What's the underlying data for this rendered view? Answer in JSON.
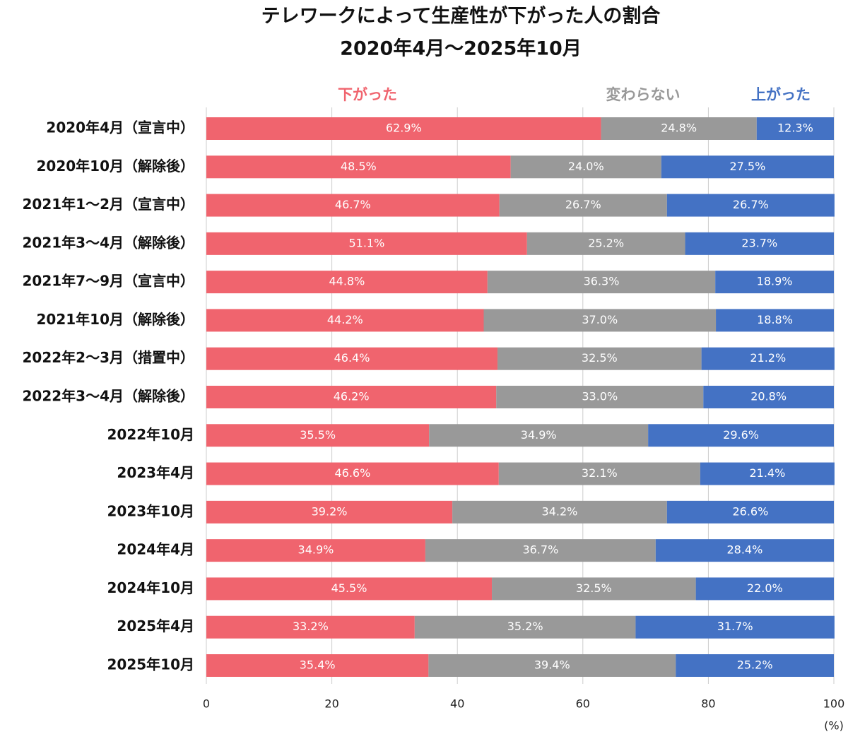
{
  "chart_data": {
    "type": "stacked-barh",
    "title": "テレワークによって生産性が下がった人の割合",
    "subtitle": "2020年4月〜2025年10月",
    "x_label": "(%)",
    "categories": [
      "2020年4月（宣言中）",
      "2020年10月（解除後）",
      "2021年1〜2月（宣言中）",
      "2021年3〜4月（解除後）",
      "2021年7〜9月（宣言中）",
      "2021年10月（解除後）",
      "2022年2〜3月（措置中）",
      "2022年3〜4月（解除後）",
      "2022年10月",
      "2023年4月",
      "2023年10月",
      "2024年4月",
      "2024年10月",
      "2025年4月",
      "2025年10月"
    ],
    "series": [
      {
        "name": "下がった",
        "color": "#f0646e",
        "values": [
          62.9,
          48.5,
          46.7,
          51.1,
          44.8,
          44.2,
          46.4,
          46.2,
          35.5,
          46.6,
          39.2,
          34.9,
          45.5,
          33.2,
          35.4
        ],
        "value_labels": [
          "62.9%",
          "48.5%",
          "46.7%",
          "51.1%",
          "44.8%",
          "44.2%",
          "46.4%",
          "46.2%",
          "35.5%",
          "46.6%",
          "39.2%",
          "34.9%",
          "45.5%",
          "33.2%",
          "35.4%"
        ]
      },
      {
        "name": "変わらない",
        "color": "#999999",
        "values": [
          24.8,
          24.0,
          26.7,
          25.2,
          36.3,
          37.0,
          32.5,
          33.0,
          34.9,
          32.1,
          34.2,
          36.7,
          32.5,
          35.2,
          39.4
        ],
        "value_labels": [
          "24.8%",
          "24.0%",
          "26.7%",
          "25.2%",
          "36.3%",
          "37.0%",
          "32.5%",
          "33.0%",
          "34.9%",
          "32.1%",
          "34.2%",
          "36.7%",
          "32.5%",
          "35.2%",
          "39.4%"
        ]
      },
      {
        "name": "上がった",
        "color": "#4472c4",
        "values": [
          12.3,
          27.5,
          26.7,
          23.7,
          18.9,
          18.8,
          21.2,
          20.8,
          29.6,
          21.4,
          26.6,
          28.4,
          22.0,
          31.7,
          25.2
        ],
        "value_labels": [
          "12.3%",
          "27.5%",
          "26.7%",
          "23.7%",
          "18.9%",
          "18.8%",
          "21.2%",
          "20.8%",
          "29.6%",
          "21.4%",
          "26.6%",
          "28.4%",
          "22.0%",
          "31.7%",
          "25.2%"
        ]
      }
    ],
    "xlim": [
      0,
      100
    ],
    "xticks": [
      0,
      20,
      40,
      60,
      80,
      100
    ],
    "grid": true
  }
}
